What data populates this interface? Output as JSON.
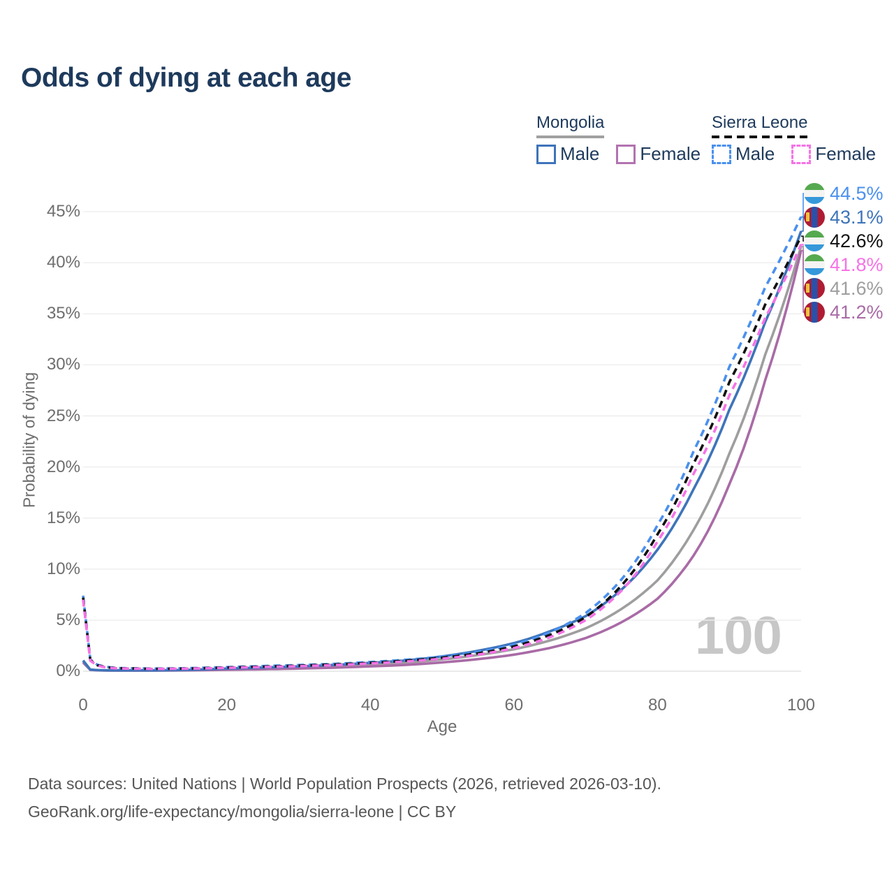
{
  "title": "Odds of dying at each age",
  "age_watermark": "100",
  "legend": {
    "groups": [
      {
        "country": "Mongolia",
        "underline_style": "solid",
        "underline_color": "#a0a0a0",
        "items": [
          {
            "label": "Male",
            "color": "#3e74ba",
            "dashed": false
          },
          {
            "label": "Female",
            "color": "#b273b0",
            "dashed": false
          }
        ]
      },
      {
        "country": "Sierra Leone",
        "underline_style": "dashed",
        "underline_color": "#111111",
        "items": [
          {
            "label": "Male",
            "color": "#4a90ee",
            "dashed": true
          },
          {
            "label": "Female",
            "color": "#f672e6",
            "dashed": true
          }
        ]
      }
    ]
  },
  "axes": {
    "y_label": "Probability of dying",
    "x_label": "Age",
    "y_ticks": [
      "0%",
      "5%",
      "10%",
      "15%",
      "20%",
      "25%",
      "30%",
      "35%",
      "40%",
      "45%"
    ],
    "x_ticks": [
      "0",
      "20",
      "40",
      "60",
      "80",
      "100"
    ]
  },
  "end_labels": [
    {
      "value": "44.5%",
      "color": "#4a90ee",
      "flag": "sierra-leone"
    },
    {
      "value": "43.1%",
      "color": "#3e74ba",
      "flag": "mongolia"
    },
    {
      "value": "42.6%",
      "color": "#111111",
      "flag": "sierra-leone"
    },
    {
      "value": "41.8%",
      "color": "#f672e6",
      "flag": "sierra-leone"
    },
    {
      "value": "41.6%",
      "color": "#9e9e9e",
      "flag": "mongolia"
    },
    {
      "value": "41.2%",
      "color": "#a96ba6",
      "flag": "mongolia"
    }
  ],
  "footer": {
    "line1": "Data sources: United Nations | World Population Prospects (2026, retrieved 2026-03-10).",
    "line2": "GeoRank.org/life-expectancy/mongolia/sierra-leone | CC BY"
  },
  "chart_data": {
    "type": "line",
    "title": "Odds of dying at each age",
    "xlabel": "Age",
    "ylabel": "Probability of dying",
    "x_ticks": [
      0,
      20,
      40,
      60,
      80,
      100
    ],
    "y_ticks_percent": [
      0,
      5,
      10,
      15,
      20,
      25,
      30,
      35,
      40,
      45
    ],
    "grid": "horizontal",
    "legend_position": "top-right",
    "ages": [
      0,
      1,
      2,
      3,
      4,
      5,
      10,
      15,
      20,
      25,
      30,
      35,
      40,
      45,
      50,
      55,
      60,
      65,
      70,
      75,
      80,
      85,
      90,
      95,
      100
    ],
    "series": [
      {
        "name": "Sierra Leone Male",
        "country": "Sierra Leone",
        "sex": "male",
        "color": "#4a90ee",
        "dashed": true,
        "end_label": "44.5%",
        "end_value_percent": 44.5,
        "values_percent": [
          7.4,
          1.15,
          0.62,
          0.45,
          0.36,
          0.31,
          0.25,
          0.3,
          0.4,
          0.5,
          0.6,
          0.72,
          0.9,
          1.12,
          1.42,
          1.9,
          2.6,
          3.8,
          5.7,
          9.0,
          14.3,
          21.5,
          29.8,
          37.6,
          44.5
        ]
      },
      {
        "name": "Mongolia Male",
        "country": "Mongolia",
        "sex": "male",
        "color": "#3e74ba",
        "dashed": false,
        "end_label": "43.1%",
        "end_value_percent": 43.1,
        "values_percent": [
          1.05,
          0.16,
          0.11,
          0.09,
          0.08,
          0.08,
          0.08,
          0.14,
          0.26,
          0.36,
          0.47,
          0.62,
          0.82,
          1.05,
          1.45,
          2.0,
          2.75,
          3.9,
          5.4,
          8.0,
          11.9,
          17.8,
          25.6,
          34.2,
          43.1
        ]
      },
      {
        "name": "Sierra Leone Both sexes",
        "country": "Sierra Leone",
        "sex": "both",
        "color": "#111111",
        "dashed": true,
        "end_label": "42.6%",
        "end_value_percent": 42.6,
        "values_percent": [
          7.2,
          1.08,
          0.58,
          0.42,
          0.33,
          0.29,
          0.23,
          0.27,
          0.36,
          0.45,
          0.54,
          0.66,
          0.82,
          1.03,
          1.32,
          1.75,
          2.42,
          3.55,
          5.3,
          8.4,
          13.4,
          20.3,
          28.3,
          35.9,
          42.6
        ]
      },
      {
        "name": "Sierra Leone Female",
        "country": "Sierra Leone",
        "sex": "female",
        "color": "#f672e6",
        "dashed": true,
        "end_label": "41.8%",
        "end_value_percent": 41.8,
        "values_percent": [
          7.0,
          1.02,
          0.55,
          0.4,
          0.31,
          0.27,
          0.22,
          0.25,
          0.33,
          0.41,
          0.49,
          0.6,
          0.76,
          0.95,
          1.22,
          1.62,
          2.26,
          3.32,
          5.0,
          7.9,
          12.7,
          19.3,
          27.0,
          34.6,
          41.8
        ]
      },
      {
        "name": "Mongolia Both sexes",
        "country": "Mongolia",
        "sex": "both",
        "color": "#9e9e9e",
        "dashed": false,
        "end_label": "41.6%",
        "end_value_percent": 41.6,
        "values_percent": [
          0.95,
          0.14,
          0.1,
          0.08,
          0.07,
          0.07,
          0.07,
          0.11,
          0.2,
          0.28,
          0.37,
          0.49,
          0.65,
          0.84,
          1.15,
          1.58,
          2.15,
          3.0,
          4.2,
          6.1,
          8.9,
          13.8,
          21.3,
          31.0,
          41.6
        ]
      },
      {
        "name": "Mongolia Female",
        "country": "Mongolia",
        "sex": "female",
        "color": "#a96ba6",
        "dashed": false,
        "end_label": "41.2%",
        "end_value_percent": 41.2,
        "values_percent": [
          0.85,
          0.13,
          0.09,
          0.07,
          0.06,
          0.06,
          0.06,
          0.09,
          0.14,
          0.19,
          0.26,
          0.35,
          0.47,
          0.62,
          0.86,
          1.18,
          1.62,
          2.28,
          3.25,
          4.8,
          7.1,
          11.3,
          18.3,
          28.5,
          41.2
        ]
      }
    ]
  }
}
